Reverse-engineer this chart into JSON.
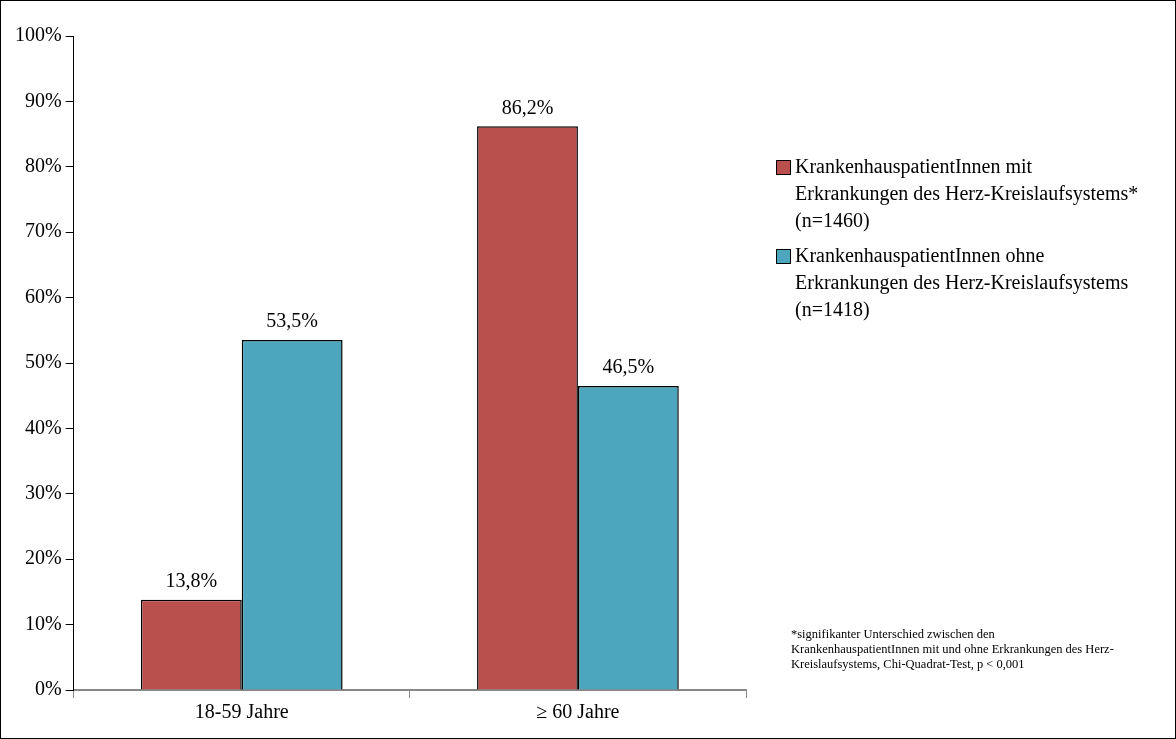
{
  "chart_data": {
    "type": "bar",
    "categories": [
      "18-59 Jahre",
      "≥ 60 Jahre"
    ],
    "series": [
      {
        "name": "KrankenhauspatientInnen mit Erkrankungen des Herz-Kreislaufsystems* (n=1460)",
        "color": "#b9504d",
        "values": [
          13.8,
          86.2
        ],
        "value_labels": [
          "13,8%",
          "86,2%"
        ]
      },
      {
        "name": "KrankenhauspatientInnen ohne Erkrankungen des Herz-Kreislaufsystems (n=1418)",
        "color": "#4ba6be",
        "values": [
          53.5,
          46.5
        ],
        "value_labels": [
          "53,5%",
          "46,5%"
        ]
      }
    ],
    "ylim": [
      0,
      100
    ],
    "yticks": [
      {
        "value": 0,
        "label": "0%"
      },
      {
        "value": 10,
        "label": "10%"
      },
      {
        "value": 20,
        "label": "20%"
      },
      {
        "value": 30,
        "label": "30%"
      },
      {
        "value": 40,
        "label": "40%"
      },
      {
        "value": 50,
        "label": "50%"
      },
      {
        "value": 60,
        "label": "60%"
      },
      {
        "value": 70,
        "label": "70%"
      },
      {
        "value": 80,
        "label": "80%"
      },
      {
        "value": 90,
        "label": "90%"
      },
      {
        "value": 100,
        "label": "100%"
      }
    ],
    "grid": false,
    "legend": "right",
    "annotations": [
      "*signifikanter Unterschied zwischen den KrankenhauspatientInnen mit und ohne Erkrankungen des Herz-Kreislaufsystems, Chi-Quadrat-Test, p < 0,001"
    ]
  }
}
